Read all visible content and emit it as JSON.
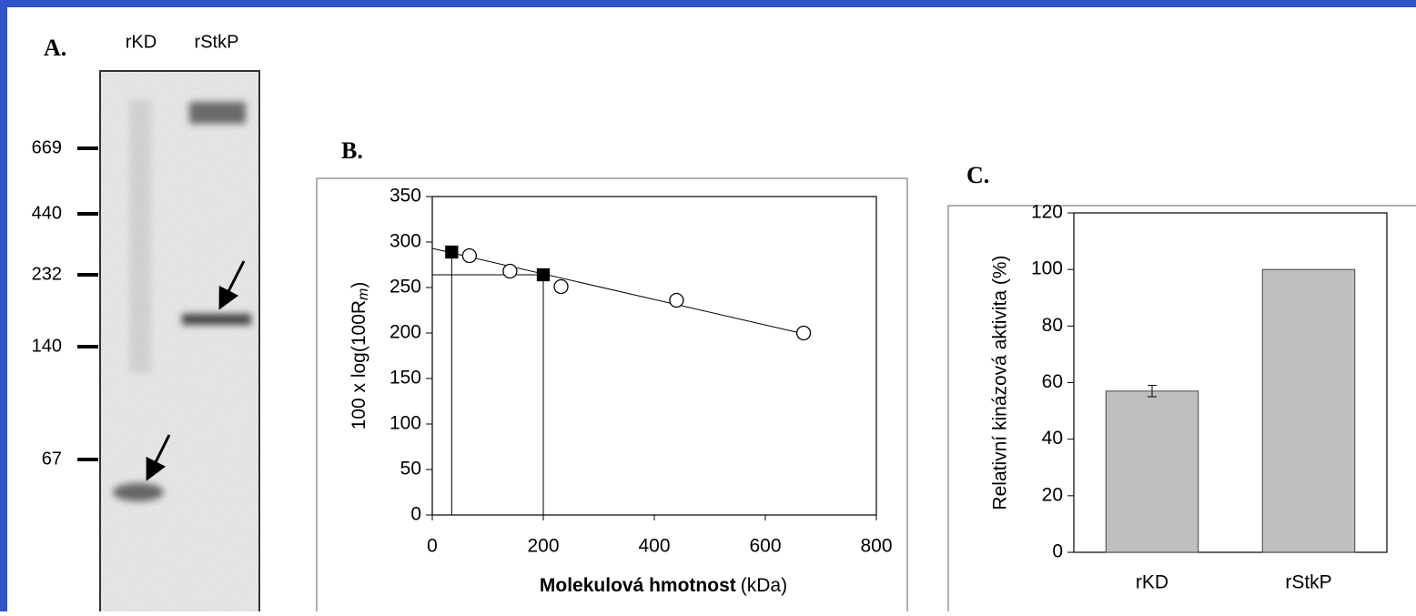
{
  "gel": {
    "label": "A.",
    "lanes": [
      "rKD",
      "rStkP"
    ],
    "markers": [
      669,
      440,
      232,
      140,
      67
    ]
  },
  "chart_data": [
    {
      "type": "scatter",
      "label": "B.",
      "ylabel": "100 x log(100R",
      "ylabel_sub": "m",
      "ylabel_end": ")",
      "xlabel": "Molekulová hmotnost",
      "xlabel_unit": "(kDa)",
      "series": [
        {
          "marker": "circle",
          "color": "#ffffff",
          "x": [
            67,
            140,
            232,
            440,
            669
          ],
          "values": [
            285,
            268,
            251,
            236,
            200
          ]
        },
        {
          "marker": "square",
          "color": "#000000",
          "x": [
            35,
            200
          ],
          "values": [
            289,
            264
          ]
        }
      ],
      "fit": {
        "x": [
          0,
          670
        ],
        "values": [
          293,
          199
        ]
      },
      "xlim": [
        0,
        800
      ],
      "xticks": [
        0,
        200,
        400,
        600,
        800
      ],
      "ylim": [
        0,
        350
      ],
      "yticks": [
        0,
        50,
        100,
        150,
        200,
        250,
        300,
        350
      ]
    },
    {
      "type": "bar",
      "label": "C.",
      "ylabel": "Relativní kinázová aktivita (%)",
      "categories": [
        "rKD",
        "rStkP"
      ],
      "values": [
        57,
        100
      ],
      "errors": [
        2,
        0
      ],
      "color": "#bfbfbf",
      "ylim": [
        0,
        120
      ],
      "yticks": [
        0,
        20,
        40,
        60,
        80,
        100,
        120
      ]
    }
  ]
}
